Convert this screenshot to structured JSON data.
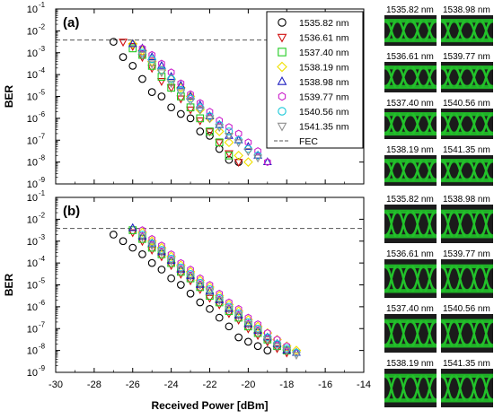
{
  "colors": {
    "axis": "#000000",
    "fec_line": "#555555",
    "eye_background": "#1b1b1b",
    "eye_trace": "#22c42a",
    "series": [
      "#000000",
      "#d01010",
      "#22cc22",
      "#f0e000",
      "#2020c0",
      "#cc22cc",
      "#18c8d8",
      "#909090"
    ]
  },
  "chart_data": [
    {
      "panel_label": "(a)",
      "type": "scatter",
      "xlabel": "",
      "ylabel": "BER",
      "xlim": [
        -30,
        -14
      ],
      "ylim_exponent": [
        -9,
        -1
      ],
      "y_scale": "log",
      "fec_limit": 0.0038,
      "legend_placement": "top-right",
      "legend": [
        {
          "label": "1535.82 nm",
          "marker": "circle"
        },
        {
          "label": "1536.61 nm",
          "marker": "triangle-down"
        },
        {
          "label": "1537.40 nm",
          "marker": "square"
        },
        {
          "label": "1538.19 nm",
          "marker": "diamond"
        },
        {
          "label": "1538.98 nm",
          "marker": "triangle-up"
        },
        {
          "label": "1539.77 nm",
          "marker": "hexagon"
        },
        {
          "label": "1540.56 nm",
          "marker": "circle"
        },
        {
          "label": "1541.35 nm",
          "marker": "triangle-down"
        },
        {
          "label": "FEC",
          "marker": "dashed-line"
        }
      ],
      "series": [
        {
          "name": "1535.82 nm",
          "marker": "circle",
          "x": [
            -27,
            -26.5,
            -26,
            -25.5,
            -25,
            -24.5,
            -24,
            -23.5,
            -23,
            -22.5,
            -22,
            -21.5,
            -21,
            -20.5
          ],
          "y_exponent": [
            -2.5,
            -3.2,
            -3.6,
            -4.2,
            -4.8,
            -5.0,
            -5.5,
            -5.8,
            -6.0,
            -6.6,
            -6.8,
            -7.4,
            -7.9,
            -8.0
          ]
        },
        {
          "name": "1536.61 nm",
          "marker": "triangle-down",
          "x": [
            -26.5,
            -26,
            -25.5,
            -25,
            -24.5,
            -24,
            -23.5,
            -23,
            -22.5,
            -22,
            -21.5,
            -21,
            -20.5
          ],
          "y_exponent": [
            -2.5,
            -2.7,
            -3.2,
            -3.7,
            -4.3,
            -4.6,
            -5.1,
            -5.6,
            -6.1,
            -6.6,
            -7.1,
            -7.6,
            -8.0
          ]
        },
        {
          "name": "1537.40 nm",
          "marker": "square",
          "x": [
            -26,
            -25.5,
            -25,
            -24.5,
            -24,
            -23.5,
            -23,
            -22.5,
            -22,
            -21.5,
            -21
          ],
          "y_exponent": [
            -2.8,
            -3.1,
            -3.6,
            -4.1,
            -4.6,
            -5.0,
            -5.5,
            -6.0,
            -6.6,
            -7.1,
            -7.7
          ]
        },
        {
          "name": "1538.19 nm",
          "marker": "diamond",
          "x": [
            -26,
            -25.5,
            -25,
            -24.5,
            -24,
            -23.5,
            -23,
            -22.5,
            -22,
            -21.5,
            -21,
            -20.5,
            -20
          ],
          "y_exponent": [
            -2.6,
            -2.9,
            -3.4,
            -3.8,
            -4.2,
            -4.6,
            -5.0,
            -5.6,
            -6.0,
            -6.6,
            -7.1,
            -7.7,
            -8.0
          ]
        },
        {
          "name": "1538.98 nm",
          "marker": "triangle-up",
          "x": [
            -26,
            -25.5,
            -25,
            -24.5,
            -24,
            -23.5,
            -23,
            -22.5,
            -22,
            -21.5,
            -21,
            -20.5,
            -20,
            -19.5,
            -19
          ],
          "y_exponent": [
            -2.6,
            -2.8,
            -3.2,
            -3.6,
            -4.1,
            -4.5,
            -5.0,
            -5.4,
            -5.9,
            -6.3,
            -6.8,
            -7.0,
            -7.3,
            -7.7,
            -8.0
          ]
        },
        {
          "name": "1539.77 nm",
          "marker": "hexagon",
          "x": [
            -25.5,
            -25,
            -24.5,
            -24,
            -23.5,
            -23,
            -22.5,
            -22,
            -21.5,
            -21,
            -20.5,
            -20,
            -19.5,
            -19
          ],
          "y_exponent": [
            -2.8,
            -3.1,
            -3.5,
            -3.9,
            -4.4,
            -4.9,
            -5.3,
            -5.7,
            -6.1,
            -6.4,
            -6.7,
            -7.1,
            -7.5,
            -8.0
          ]
        },
        {
          "name": "1540.56 nm",
          "marker": "circle",
          "x": [
            -25.5,
            -25,
            -24.5,
            -24,
            -23.5,
            -23,
            -22.5,
            -22,
            -21.5,
            -21,
            -20.5,
            -20,
            -19.5
          ],
          "y_exponent": [
            -3.0,
            -3.3,
            -3.8,
            -4.2,
            -4.7,
            -5.1,
            -5.5,
            -5.9,
            -6.3,
            -6.6,
            -7.0,
            -7.4,
            -7.7
          ]
        },
        {
          "name": "1541.35 nm",
          "marker": "triangle-down",
          "x": [
            -25.5,
            -25,
            -24.5,
            -24,
            -23.5,
            -23,
            -22.5,
            -22,
            -21.5,
            -21,
            -20.5,
            -20,
            -19.5
          ],
          "y_exponent": [
            -3.1,
            -3.5,
            -3.9,
            -4.4,
            -4.8,
            -5.2,
            -5.6,
            -6.0,
            -6.4,
            -6.8,
            -7.1,
            -7.5,
            -7.8
          ]
        }
      ]
    },
    {
      "panel_label": "(b)",
      "type": "scatter",
      "xlabel": "Received Power [dBm]",
      "ylabel": "BER",
      "xlim": [
        -30,
        -14
      ],
      "x_ticks": [
        "-30",
        "-28",
        "-26",
        "-24",
        "-22",
        "-20",
        "-18",
        "-16",
        "-14"
      ],
      "ylim_exponent": [
        -9,
        -1
      ],
      "y_scale": "log",
      "fec_limit": 0.0038,
      "series": [
        {
          "name": "1535.82 nm",
          "marker": "circle",
          "x": [
            -27,
            -26.5,
            -26,
            -25.5,
            -25,
            -24.5,
            -24,
            -23.5,
            -23,
            -22.5,
            -22,
            -21.5,
            -21,
            -20.5,
            -20,
            -19.5,
            -19
          ],
          "y_exponent": [
            -2.7,
            -3.0,
            -3.3,
            -3.6,
            -4.0,
            -4.3,
            -4.7,
            -5.0,
            -5.4,
            -5.8,
            -6.1,
            -6.5,
            -6.9,
            -7.4,
            -7.6,
            -7.8,
            -8.0
          ]
        },
        {
          "name": "1536.61 nm",
          "marker": "triangle-down",
          "x": [
            -26,
            -25.5,
            -25,
            -24.5,
            -24,
            -23.5,
            -23,
            -22.5,
            -22,
            -21.5,
            -21,
            -20.5,
            -20,
            -19.5,
            -19,
            -18.5,
            -18
          ],
          "y_exponent": [
            -2.6,
            -3.0,
            -3.4,
            -3.7,
            -4.1,
            -4.5,
            -4.8,
            -5.2,
            -5.6,
            -5.9,
            -6.3,
            -6.6,
            -7.0,
            -7.3,
            -7.6,
            -7.9,
            -8.1
          ]
        },
        {
          "name": "1537.40 nm",
          "marker": "square",
          "x": [
            -26,
            -25.5,
            -25,
            -24.5,
            -24,
            -23.5,
            -23,
            -22.5,
            -22,
            -21.5,
            -21,
            -20.5,
            -20,
            -19.5,
            -19,
            -18.5,
            -18
          ],
          "y_exponent": [
            -2.5,
            -2.9,
            -3.3,
            -3.6,
            -4.0,
            -4.4,
            -4.7,
            -5.1,
            -5.5,
            -5.8,
            -6.2,
            -6.5,
            -6.9,
            -7.2,
            -7.5,
            -7.8,
            -8.0
          ]
        },
        {
          "name": "1538.19 nm",
          "marker": "diamond",
          "x": [
            -25.5,
            -25,
            -24.5,
            -24,
            -23.5,
            -23,
            -22.5,
            -22,
            -21.5,
            -21,
            -20.5,
            -20,
            -19.5,
            -19,
            -18.5,
            -18,
            -17.5
          ],
          "y_exponent": [
            -2.6,
            -3.0,
            -3.3,
            -3.7,
            -4.1,
            -4.4,
            -4.8,
            -5.1,
            -5.5,
            -5.9,
            -6.2,
            -6.6,
            -6.9,
            -7.2,
            -7.5,
            -7.8,
            -8.0
          ]
        },
        {
          "name": "1538.98 nm",
          "marker": "triangle-up",
          "x": [
            -26,
            -25.5,
            -25,
            -24.5,
            -24,
            -23.5,
            -23,
            -22.5,
            -22,
            -21.5,
            -21,
            -20.5,
            -20,
            -19.5,
            -19,
            -18.5,
            -18,
            -17.5
          ],
          "y_exponent": [
            -2.4,
            -2.8,
            -3.1,
            -3.5,
            -3.9,
            -4.3,
            -4.6,
            -5.0,
            -5.3,
            -5.7,
            -6.1,
            -6.4,
            -6.8,
            -7.1,
            -7.4,
            -7.7,
            -8.0,
            -8.1
          ]
        },
        {
          "name": "1539.77 nm",
          "marker": "hexagon",
          "x": [
            -25.5,
            -25,
            -24.5,
            -24,
            -23.5,
            -23,
            -22.5,
            -22,
            -21.5,
            -21,
            -20.5,
            -20,
            -19.5,
            -19,
            -18.5,
            -18,
            -17.5
          ],
          "y_exponent": [
            -2.5,
            -2.9,
            -3.2,
            -3.6,
            -4.0,
            -4.3,
            -4.7,
            -5.0,
            -5.4,
            -5.8,
            -6.1,
            -6.5,
            -6.8,
            -7.2,
            -7.5,
            -7.8,
            -8.1
          ]
        },
        {
          "name": "1540.56 nm",
          "marker": "circle",
          "x": [
            -25.5,
            -25,
            -24.5,
            -24,
            -23.5,
            -23,
            -22.5,
            -22,
            -21.5,
            -21,
            -20.5,
            -20,
            -19.5,
            -19,
            -18.5,
            -18,
            -17.5
          ],
          "y_exponent": [
            -2.7,
            -3.1,
            -3.4,
            -3.8,
            -4.2,
            -4.5,
            -4.9,
            -5.2,
            -5.6,
            -6.0,
            -6.3,
            -6.7,
            -7.0,
            -7.4,
            -7.7,
            -7.9,
            -8.1
          ]
        },
        {
          "name": "1541.35 nm",
          "marker": "triangle-down",
          "x": [
            -25.5,
            -25,
            -24.5,
            -24,
            -23.5,
            -23,
            -22.5,
            -22,
            -21.5,
            -21,
            -20.5,
            -20,
            -19.5,
            -19,
            -18.5,
            -18,
            -17.5
          ],
          "y_exponent": [
            -2.8,
            -3.2,
            -3.5,
            -3.9,
            -4.3,
            -4.6,
            -5.0,
            -5.3,
            -5.7,
            -6.1,
            -6.4,
            -6.8,
            -7.1,
            -7.5,
            -7.8,
            -8.0,
            -8.2
          ]
        }
      ]
    }
  ],
  "eye_diagrams": [
    {
      "panel": "(a)",
      "labels": [
        "1535.82 nm",
        "1538.98 nm",
        "1536.61 nm",
        "1539.77 nm",
        "1537.40 nm",
        "1540.56 nm",
        "1538.19 nm",
        "1541.35 nm"
      ]
    },
    {
      "panel": "(b)",
      "labels": [
        "1535.82 nm",
        "1538.98 nm",
        "1536.61 nm",
        "1539.77 nm",
        "1537.40 nm",
        "1540.56 nm",
        "1538.19 nm",
        "1541.35 nm"
      ]
    }
  ]
}
